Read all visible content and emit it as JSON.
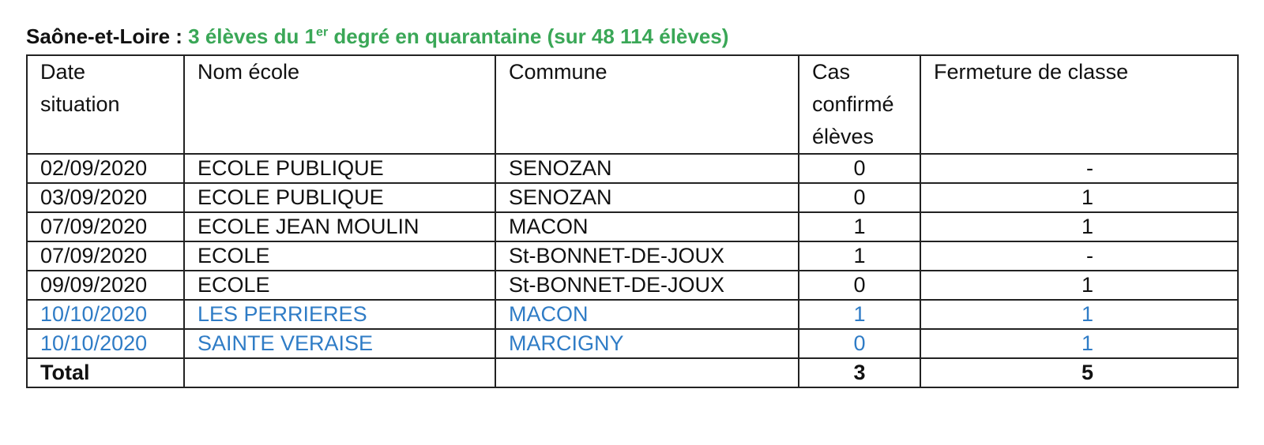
{
  "title": {
    "region": "Saône-et-Loire :",
    "summary_pre": "3 élèves du 1",
    "summary_sup": "er",
    "summary_post": " degré en quarantaine (sur 48 114 élèves)"
  },
  "colors": {
    "summary_green": "#3aa757",
    "recent_rows_blue": "#2f7cc6"
  },
  "table": {
    "headers": {
      "date": [
        "Date",
        "situation"
      ],
      "ecole": "Nom école",
      "commune": "Commune",
      "cas": [
        "Cas",
        "confirmé",
        "élèves"
      ],
      "fermeture": "Fermeture de classe"
    },
    "rows": [
      {
        "date": "02/09/2020",
        "ecole": "ECOLE PUBLIQUE",
        "commune": "SENOZAN",
        "cas": "0",
        "fermeture": "-"
      },
      {
        "date": "03/09/2020",
        "ecole": "ECOLE PUBLIQUE",
        "commune": "SENOZAN",
        "cas": "0",
        "fermeture": "1"
      },
      {
        "date": "07/09/2020",
        "ecole": "ECOLE JEAN MOULIN",
        "commune": "MACON",
        "cas": "1",
        "fermeture": "1"
      },
      {
        "date": "07/09/2020",
        "ecole": "ECOLE",
        "commune": "St-BONNET-DE-JOUX",
        "cas": "1",
        "fermeture": "-"
      },
      {
        "date": "09/09/2020",
        "ecole": "ECOLE",
        "commune": "St-BONNET-DE-JOUX",
        "cas": "0",
        "fermeture": "1"
      },
      {
        "date": "10/10/2020",
        "ecole": "LES PERRIERES",
        "commune": "MACON",
        "cas": "1",
        "fermeture": "1"
      },
      {
        "date": "10/10/2020",
        "ecole": "SAINTE VERAISE",
        "commune": "MARCIGNY",
        "cas": "0",
        "fermeture": "1"
      }
    ],
    "total": {
      "label": "Total",
      "cas": "3",
      "fermeture": "5"
    }
  }
}
